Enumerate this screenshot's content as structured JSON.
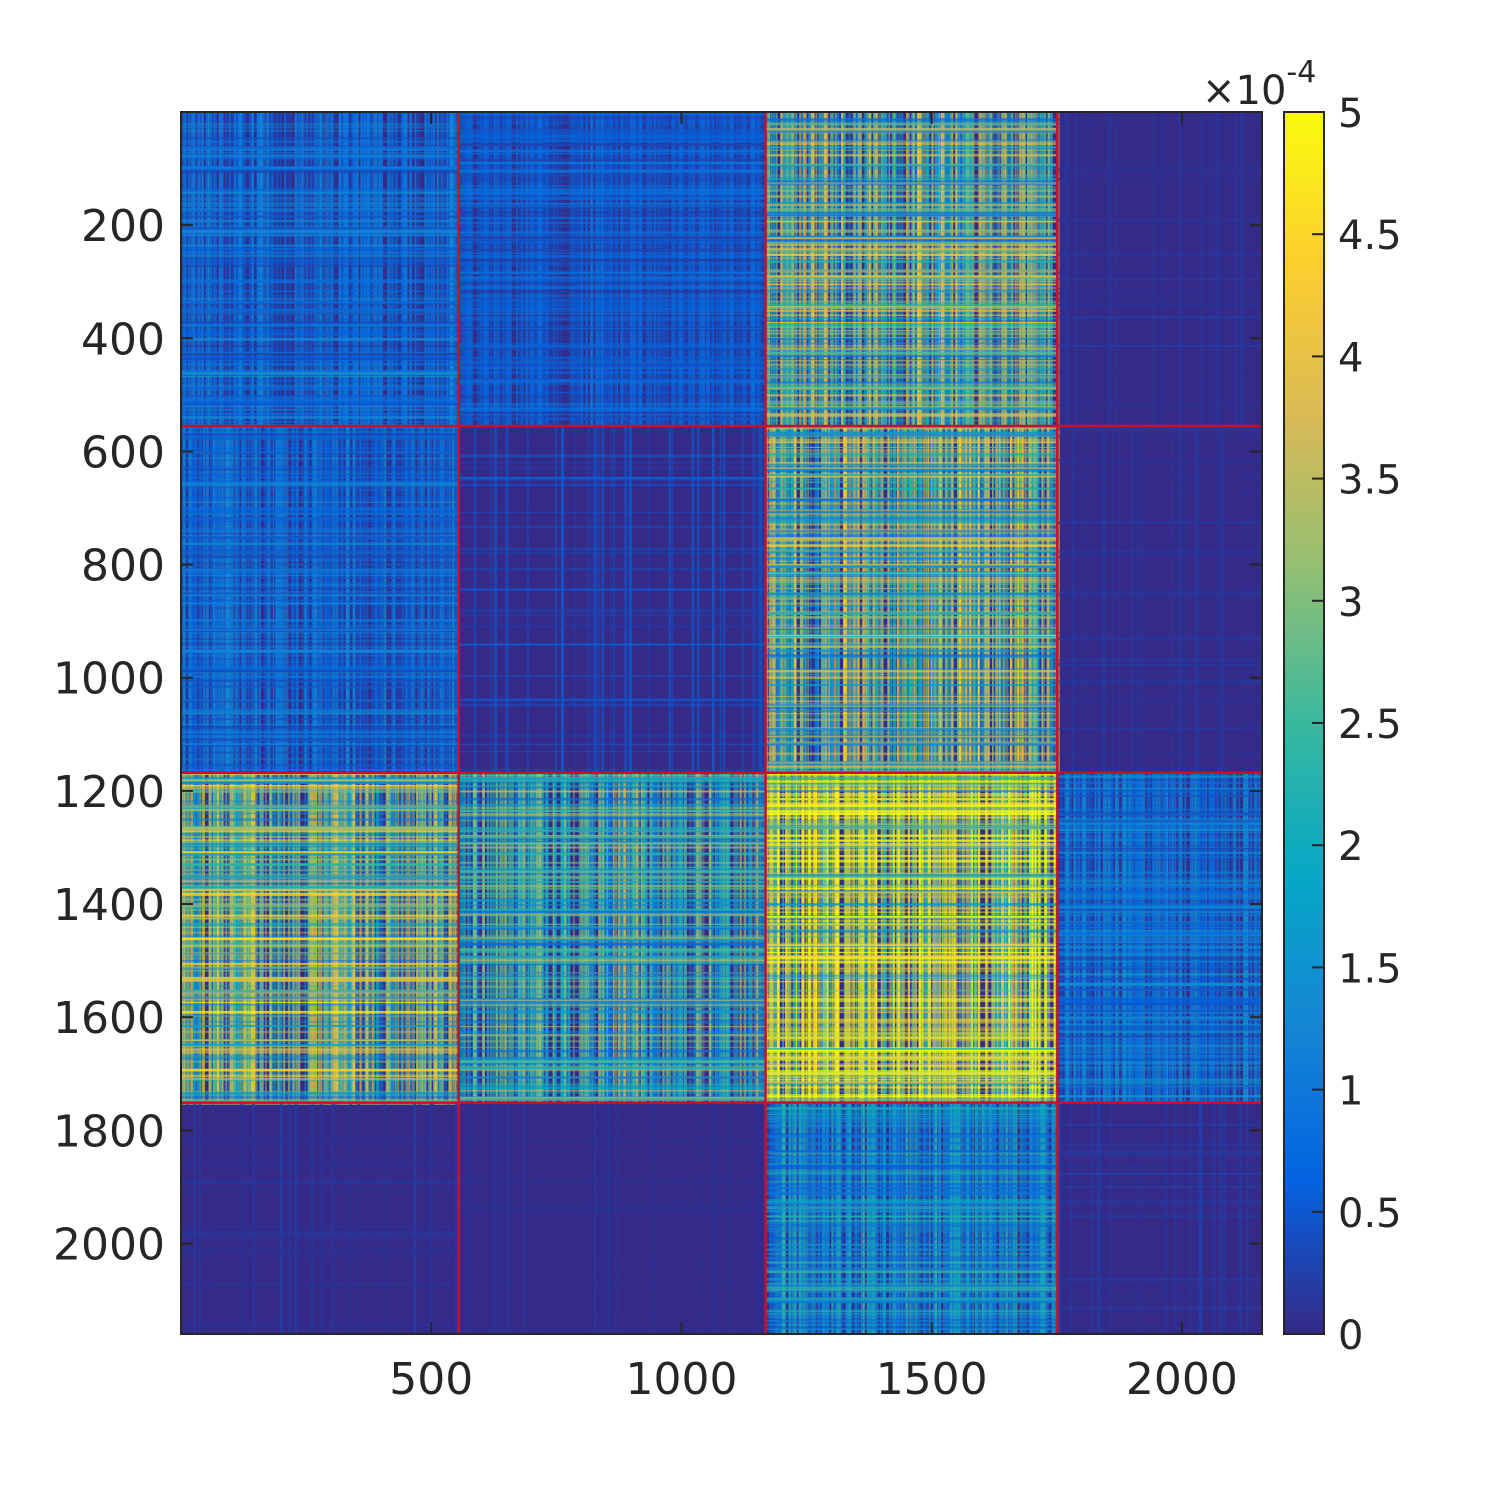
{
  "chart_data": {
    "type": "heatmap",
    "title": "",
    "xlabel": "",
    "ylabel": "",
    "matrix_size": 2160,
    "xlim": [
      0,
      2160
    ],
    "ylim": [
      0,
      2160
    ],
    "y_direction": "reversed",
    "x_ticks": [
      500,
      1000,
      1500,
      2000
    ],
    "x_tick_labels": [
      "500",
      "1000",
      "1500",
      "2000"
    ],
    "y_ticks": [
      200,
      400,
      600,
      800,
      1000,
      1200,
      1400,
      1600,
      1800,
      2000
    ],
    "y_tick_labels": [
      "200",
      "400",
      "600",
      "800",
      "1000",
      "1200",
      "1400",
      "1600",
      "1800",
      "2000"
    ],
    "block_boundaries": [
      555,
      1168,
      1751
    ],
    "boundary_color": "#c8102e",
    "block_mean_intensity": [
      [
        0.18,
        0.12,
        0.55,
        0.03
      ],
      [
        0.17,
        0.1,
        0.55,
        0.03
      ],
      [
        0.6,
        0.45,
        0.9,
        0.22
      ],
      [
        0.03,
        0.02,
        0.32,
        0.04
      ]
    ],
    "colorbar": {
      "min": 0,
      "max": 5,
      "ticks": [
        0,
        0.5,
        1,
        1.5,
        2,
        2.5,
        3,
        3.5,
        4,
        4.5,
        5
      ],
      "tick_labels": [
        "0",
        "0.5",
        "1",
        "1.5",
        "2",
        "2.5",
        "3",
        "3.5",
        "4",
        "4.5",
        "5"
      ],
      "multiplier_base": "×10",
      "multiplier_exp": "-4",
      "colormap": "parula"
    },
    "colormap_stops": [
      "#352a87",
      "#0363e1",
      "#1485d4",
      "#06a7c6",
      "#38b99e",
      "#92bf73",
      "#d9ba56",
      "#fcce2e",
      "#f9fb0e"
    ]
  }
}
